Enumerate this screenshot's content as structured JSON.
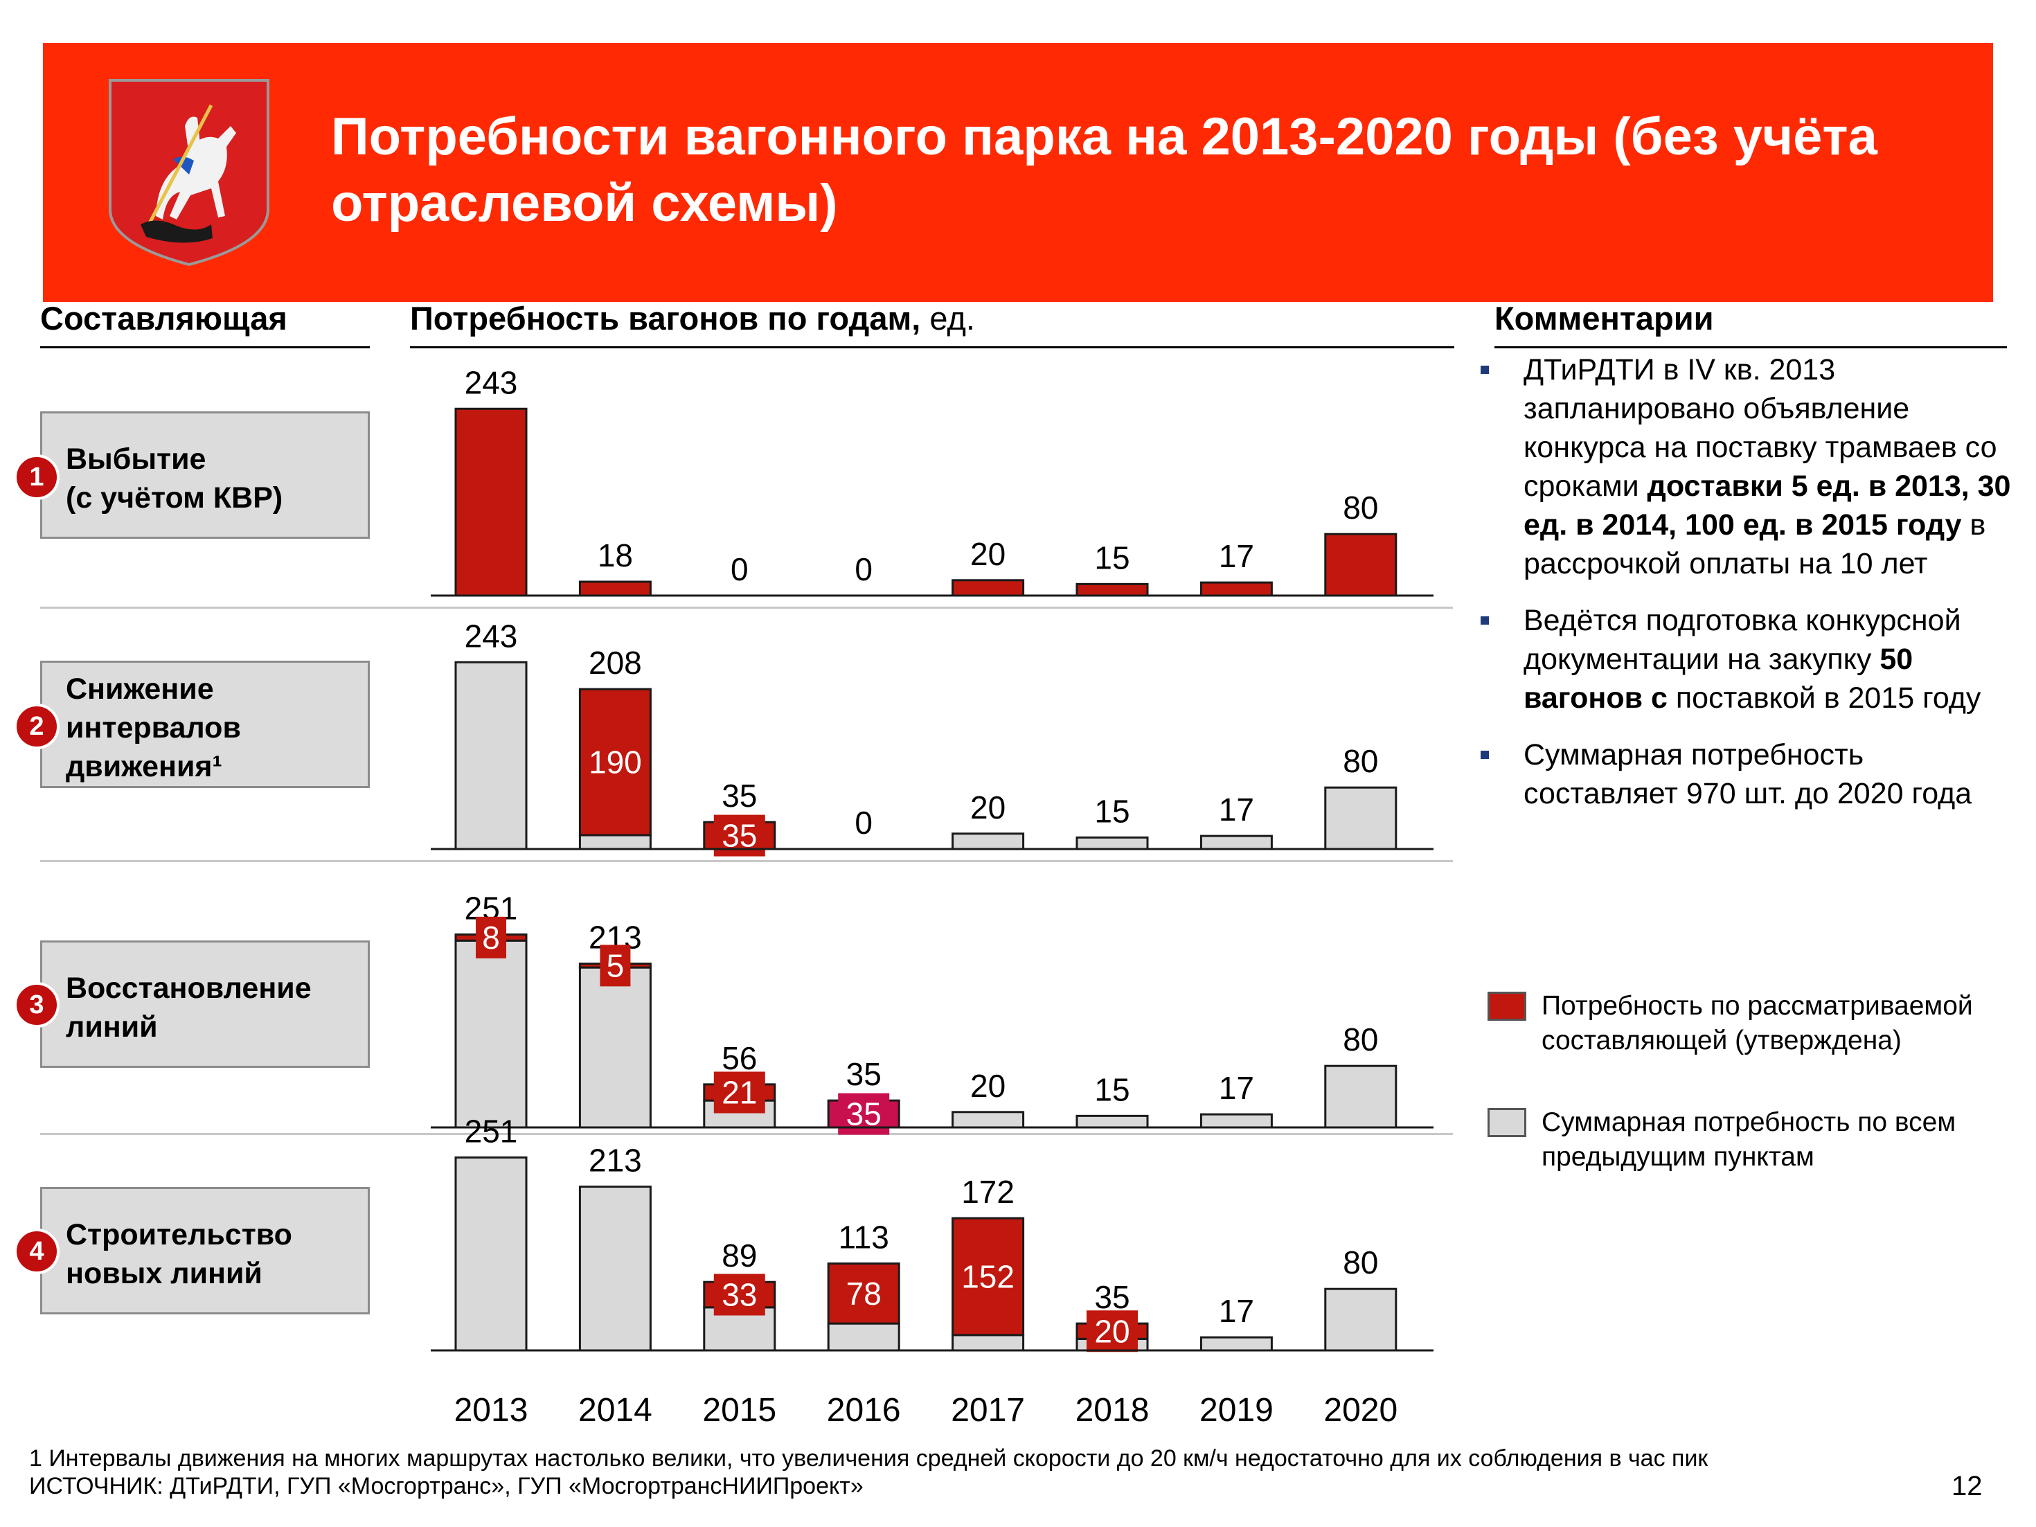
{
  "header": {
    "title": "Потребности вагонного парка на 2013-2020 годы (без учёта отраслевой схемы)",
    "background_color": "#ff2a04",
    "logo_icon": "moscow-coat-of-arms-icon"
  },
  "columns": {
    "component": "Составляющая",
    "need_bold": "Потребность вагонов по годам,",
    "need_unit": " ед.",
    "comments": "Комментарии"
  },
  "components": [
    {
      "num": "1",
      "label": "Выбытие\n(с учётом КВР)"
    },
    {
      "num": "2",
      "label": "Снижение\nинтервалов\nдвижения¹"
    },
    {
      "num": "3",
      "label": "Восстановление\nлиний"
    },
    {
      "num": "4",
      "label": "Строительство\nновых линий"
    }
  ],
  "comments": {
    "c1_a": "ДТиРДТИ в IV кв. 2013 запланировано объявление конкурса на поставку трамваев со сроками ",
    "c1_b": "доставки 5 ед. в 2013, 30 ед. в 2014, 100 ед. в 2015 году",
    "c1_c": " в рассрочкой оплаты на 10 лет",
    "c2_a": "Ведётся подготовка конкурсной документации на закупку ",
    "c2_b": "50 вагонов с",
    "c2_c": " поставкой в 2015 году",
    "c3": "Суммарная потребность составляет 970 шт. до 2020 года"
  },
  "legend": {
    "red_label": "Потребность по рассматриваемой составляющей (утверждена)",
    "grey_label": "Суммарная потребность по всем предыдущим пунктам"
  },
  "colors": {
    "red": "#c0180e",
    "grey": "#d9d9d9",
    "magenta": "#c8104e",
    "outline": "#1a1a1a",
    "accent_number": "#c00d0d"
  },
  "chart_data": {
    "type": "bar",
    "subtype": "stacked-small-multiples",
    "categories": [
      "2013",
      "2014",
      "2015",
      "2016",
      "2017",
      "2018",
      "2019",
      "2020"
    ],
    "panels": [
      {
        "name": "Выбытие (с учётом КВР)",
        "series": [
          {
            "name": "Потребность по рассматриваемой составляющей (утверждена)",
            "values": [
              243,
              18,
              0,
              0,
              20,
              15,
              17,
              80
            ]
          },
          {
            "name": "Суммарная потребность по всем предыдущим пунктам",
            "values": [
              0,
              0,
              0,
              0,
              0,
              0,
              0,
              0
            ]
          }
        ],
        "totals": [
          "243",
          "18",
          "0",
          "0",
          "20",
          "15",
          "17",
          "80"
        ],
        "inner_labels": [
          null,
          null,
          null,
          null,
          null,
          null,
          null,
          null
        ]
      },
      {
        "name": "Снижение интервалов движения",
        "series": [
          {
            "name": "Потребность по рассматриваемой составляющей (утверждена)",
            "values": [
              0,
              190,
              35,
              0,
              0,
              0,
              0,
              0
            ]
          },
          {
            "name": "Суммарная потребность по всем предыдущим пунктам",
            "values": [
              243,
              18,
              0,
              0,
              20,
              15,
              17,
              80
            ]
          }
        ],
        "totals": [
          "243",
          "208",
          "35",
          "0",
          "20",
          "15",
          "17",
          "80"
        ],
        "inner_labels": [
          null,
          "190",
          "35",
          null,
          null,
          null,
          null,
          null
        ]
      },
      {
        "name": "Восстановление линий",
        "series": [
          {
            "name": "Потребность по рассматриваемой составляющей (утверждена)",
            "values": [
              8,
              5,
              21,
              35,
              0,
              0,
              0,
              0
            ]
          },
          {
            "name": "Суммарная потребность по всем предыдущим пунктам",
            "values": [
              243,
              208,
              35,
              0,
              20,
              15,
              17,
              80
            ]
          }
        ],
        "totals": [
          "251",
          "213",
          "56",
          "35",
          "20",
          "15",
          "17",
          "80"
        ],
        "inner_labels": [
          "8",
          "5",
          "21",
          "35",
          null,
          null,
          null,
          null
        ]
      },
      {
        "name": "Строительство новых линий",
        "series": [
          {
            "name": "Потребность по рассматриваемой составляющей (утверждена)",
            "values": [
              0,
              0,
              33,
              78,
              152,
              20,
              0,
              0
            ]
          },
          {
            "name": "Суммарная потребность по всем предыдущим пунктам",
            "values": [
              251,
              213,
              56,
              35,
              20,
              15,
              17,
              80
            ]
          }
        ],
        "totals": [
          "251",
          "213",
          "89",
          "113",
          "172",
          "35",
          "17",
          "80"
        ],
        "inner_labels": [
          null,
          null,
          "33",
          "78",
          "152",
          "20",
          null,
          null
        ]
      }
    ],
    "title": "Потребность вагонов по годам, ед.",
    "xlabel": "",
    "ylabel": "ед.",
    "legend_position": "right"
  },
  "footnote": {
    "line1": "1 Интервалы движения на многих маршрутах настолько велики, что увеличения средней скорости до 20 км/ч недостаточно для их соблюдения в час пик",
    "line2": "ИСТОЧНИК: ДТиРДТИ, ГУП «Мосгортранс», ГУП «МосгортрансНИИПроект»"
  },
  "page_number": "12"
}
